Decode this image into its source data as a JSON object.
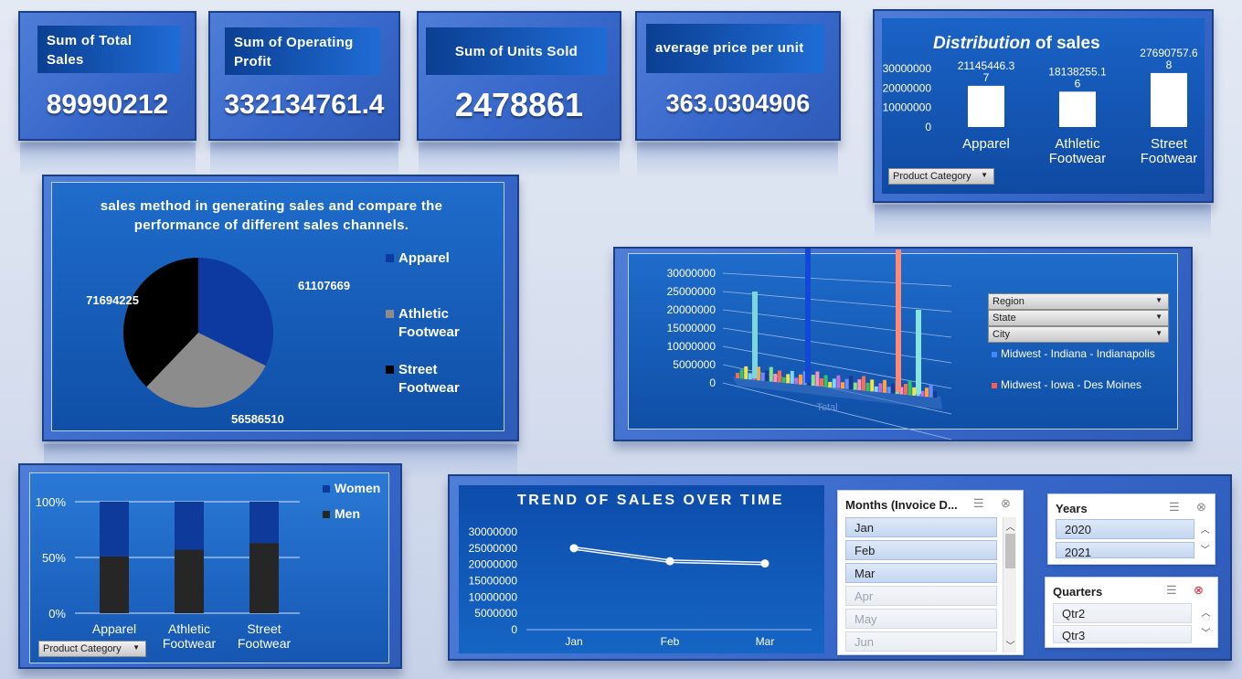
{
  "kpis": [
    {
      "title": "Sum of Total Sales",
      "value": "89990212"
    },
    {
      "title": "Sum of Operating Profit",
      "value": "332134761.4"
    },
    {
      "title": "Sum of Units Sold",
      "value": "2478861"
    },
    {
      "title": "average price per unit",
      "value": "363.0304906"
    }
  ],
  "distribution": {
    "title_bold": "Distribution",
    "title_rest": " of sales",
    "filter": "Product Category"
  },
  "pie": {
    "title": "sales method in generating sales and compare the performance of different sales channels.",
    "filter": ""
  },
  "region": {
    "filters": [
      "Region",
      "State",
      "City"
    ],
    "legend": [
      "Midwest - Indiana - Indianapolis",
      "Midwest - Iowa - Des Moines"
    ],
    "xlabel": "Total"
  },
  "gender": {
    "filter": "Product Category"
  },
  "trend": {
    "title": "TREND OF SALES OVER TIME"
  },
  "slicers": {
    "months": {
      "title": "Months (Invoice D...",
      "items": [
        "Jan",
        "Feb",
        "Mar",
        "Apr",
        "May",
        "Jun"
      ]
    },
    "years": {
      "title": "Years",
      "items": [
        "2020",
        "2021"
      ]
    },
    "quarters": {
      "title": "Quarters",
      "items": [
        "Qtr2",
        "Qtr3"
      ]
    }
  },
  "colors": {
    "accent": "#0b3f92",
    "apparel": "#0c3aa0",
    "athletic": "#8c8c8c",
    "street": "#000000",
    "men": "#262626",
    "women": "#0e3a9c"
  },
  "chart_data": [
    {
      "type": "bar",
      "categories": [
        "Apparel",
        "Athletic Footwear",
        "Street Footwear"
      ],
      "values": [
        21145446.37,
        18138255.16,
        27690757.68
      ],
      "value_labels": [
        "21145446.37",
        "18138255.16",
        "27690757.68"
      ],
      "title": "Distribution of sales",
      "ylim": [
        0,
        30000000
      ],
      "yticks": [
        "30000000",
        "20000000",
        "10000000",
        "0"
      ]
    },
    {
      "type": "pie",
      "categories": [
        "Apparel",
        "Athletic Footwear",
        "Street Footwear"
      ],
      "values": [
        61107669,
        56586510,
        71694225
      ],
      "legend": "right"
    },
    {
      "type": "bar",
      "categories": [
        "Apparel",
        "Athletic Footwear",
        "Street Footwear"
      ],
      "series": [
        {
          "name": "Men",
          "values": [
            51,
            57,
            63
          ]
        },
        {
          "name": "Women",
          "values": [
            49,
            43,
            37
          ]
        }
      ],
      "stacked": "percent",
      "yticks": [
        "100%",
        "50%",
        "0%"
      ],
      "legend": "top-right"
    },
    {
      "type": "line",
      "categories": [
        "Jan",
        "Feb",
        "Mar"
      ],
      "values": [
        25000000,
        21000000,
        20300000
      ],
      "title": "TREND OF SALES OVER TIME",
      "ylim": [
        0,
        30000000
      ],
      "yticks": [
        "30000000",
        "25000000",
        "20000000",
        "15000000",
        "10000000",
        "5000000",
        "0"
      ]
    },
    {
      "type": "bar",
      "title": "",
      "xlabel": "Total",
      "ylim": [
        0,
        30000000
      ],
      "yticks": [
        "30000000",
        "25000000",
        "20000000",
        "15000000",
        "10000000",
        "5000000",
        "0"
      ],
      "series": [
        {
          "name": "Midwest - Indiana - Indianapolis"
        },
        {
          "name": "Midwest - Iowa - Des Moines"
        }
      ]
    }
  ]
}
